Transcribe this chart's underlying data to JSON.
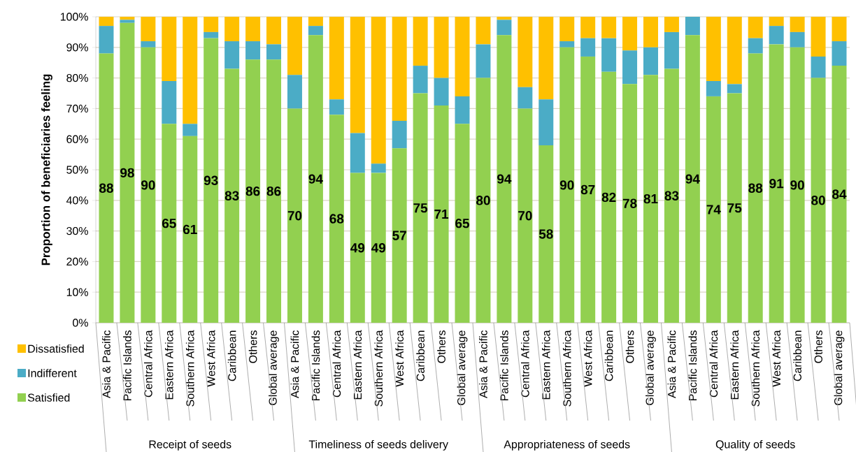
{
  "chart_data": {
    "type": "bar",
    "stacked": true,
    "ylabel": "Proportion of beneficiaries feeling",
    "categories": [
      "Asia & Pacific",
      "Pacific Islands",
      "Central Africa",
      "Eastern Africa",
      "Southern Africa",
      "West Africa",
      "Caribbean",
      "Others",
      "Global average",
      "Asia & Pacific",
      "Pacific Islands",
      "Central Africa",
      "Eastern Africa",
      "Southern Africa",
      "West Africa",
      "Caribbean",
      "Others",
      "Global average",
      "Asia & Pacific",
      "Pacific Islands",
      "Central Africa",
      "Eastern Africa",
      "Southern Africa",
      "West Africa",
      "Caribbean",
      "Others",
      "Global average",
      "Asia & Pacific",
      "Pacific Islands",
      "Central Africa",
      "Eastern Africa",
      "Southern Africa",
      "West Africa",
      "Caribbean",
      "Others",
      "Global average"
    ],
    "series": [
      {
        "name": "Satisfied",
        "color": "#92d050",
        "values": [
          88,
          98,
          90,
          65,
          61,
          93,
          83,
          86,
          86,
          70,
          94,
          68,
          49,
          49,
          57,
          75,
          71,
          65,
          80,
          94,
          70,
          58,
          90,
          87,
          82,
          78,
          81,
          83,
          94,
          74,
          75,
          88,
          91,
          90,
          80,
          84
        ],
        "value_labels": [
          "88",
          "98",
          "90",
          "65",
          "61",
          "93",
          "83",
          "86",
          "86",
          "70",
          "94",
          "68",
          "49",
          "49",
          "57",
          "75",
          "71",
          "65",
          "80",
          "94",
          "70",
          "58",
          "90",
          "87",
          "82",
          "78",
          "81",
          "83",
          "94",
          "74",
          "75",
          "88",
          "91",
          "90",
          "80",
          "84"
        ]
      },
      {
        "name": "Indifferent",
        "color": "#4bacc6",
        "values": [
          9,
          1,
          2,
          14,
          4,
          2,
          9,
          6,
          5,
          11,
          3,
          5,
          13,
          3,
          9,
          9,
          9,
          9,
          11,
          5,
          7,
          15,
          2,
          6,
          11,
          11,
          9,
          12,
          6,
          5,
          3,
          5,
          6,
          5,
          7,
          8
        ]
      },
      {
        "name": "Dissatisfied",
        "color": "#ffc000",
        "values": [
          3,
          1,
          8,
          21,
          35,
          5,
          8,
          8,
          9,
          19,
          3,
          27,
          38,
          48,
          34,
          16,
          20,
          26,
          9,
          1,
          23,
          27,
          8,
          7,
          7,
          11,
          10,
          5,
          0,
          21,
          22,
          7,
          3,
          5,
          13,
          8
        ]
      }
    ],
    "ylim": [
      0,
      100
    ],
    "yticks": [
      {
        "value": 0,
        "label": "0%"
      },
      {
        "value": 10,
        "label": "10%"
      },
      {
        "value": 20,
        "label": "20%"
      },
      {
        "value": 30,
        "label": "30%"
      },
      {
        "value": 40,
        "label": "40%"
      },
      {
        "value": 50,
        "label": "50%"
      },
      {
        "value": 60,
        "label": "60%"
      },
      {
        "value": 70,
        "label": "70%"
      },
      {
        "value": 80,
        "label": "80%"
      },
      {
        "value": 90,
        "label": "90%"
      },
      {
        "value": 100,
        "label": "100%"
      }
    ],
    "grid": "y",
    "legend": "bottom left",
    "annotations": [
      "Receipt of seeds",
      "Timeliness of seeds delivery",
      "Appropriateness of seeds",
      "Quality of seeds"
    ]
  }
}
